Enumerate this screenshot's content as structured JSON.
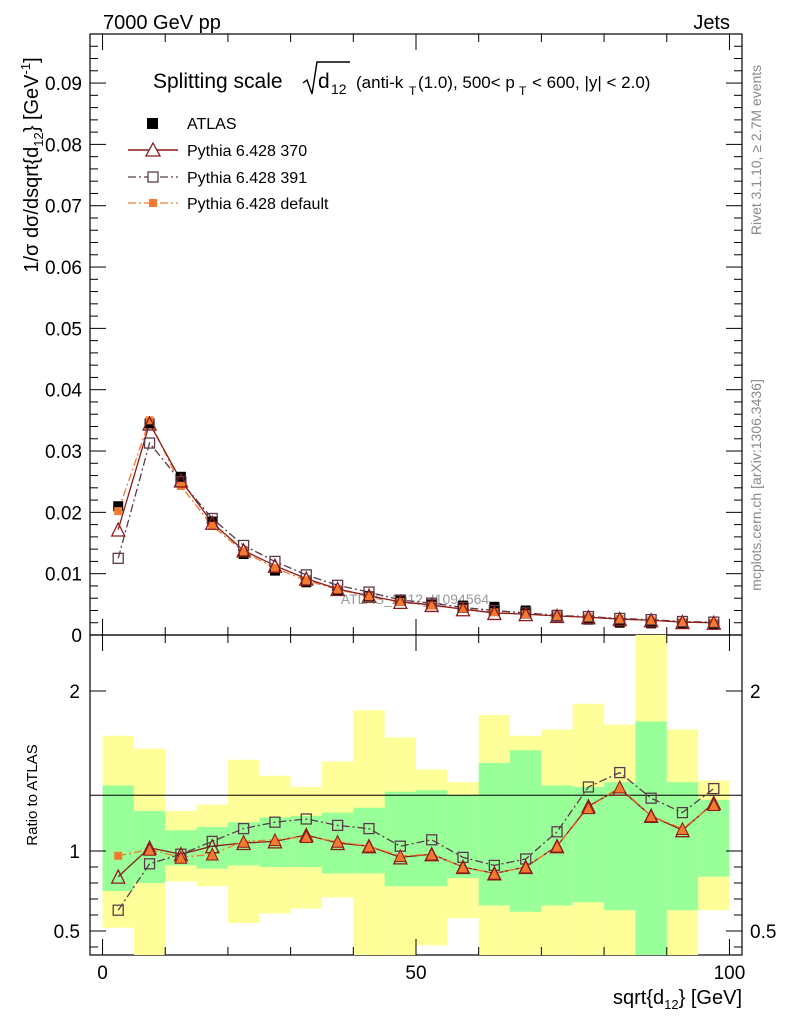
{
  "header": {
    "left": "7000 GeV pp",
    "right": "Jets"
  },
  "side_labels": {
    "rivet": "Rivet 3.1.10, ≥ 2.7M events",
    "mcplots": "mcplots.cern.ch [arXiv:1306.3436]"
  },
  "watermark": "ATLAS_2012_I1094564",
  "title": {
    "prefix": "Splitting scale",
    "sqrt_body": "d",
    "sqrt_sub": "12",
    "detail_1": "(anti-k",
    "detail_sub_1": "T",
    "detail_2": "(1.0), 500< p",
    "detail_sub_2": "T",
    "detail_3": "< 600, |y| < 2.0)"
  },
  "y_axis_main": {
    "label": "1/σ dσ/dsqrt{d",
    "label_sub": "12",
    "label_tail": "} [GeV",
    "label_sup": "-1",
    "label_end": "]"
  },
  "y_axis_ratio": {
    "label": "Ratio to ATLAS"
  },
  "x_axis": {
    "label": "sqrt{d",
    "label_sub": "12",
    "label_tail": "} [GeV]"
  },
  "chart_data": {
    "type": "line",
    "x": [
      2.5,
      7.5,
      12.5,
      17.5,
      22.5,
      27.5,
      32.5,
      37.5,
      42.5,
      47.5,
      52.5,
      57.5,
      62.5,
      67.5,
      72.5,
      77.5,
      82.5,
      87.5,
      92.5,
      97.5
    ],
    "xlim": [
      -2,
      102
    ],
    "ylim": [
      0,
      0.098
    ],
    "ratio_ylim": [
      0.35,
      2.35
    ],
    "x_ticks": [
      0,
      50,
      100
    ],
    "y_ticks": [
      0,
      0.01,
      0.02,
      0.03,
      0.04,
      0.05,
      0.06,
      0.07,
      0.08,
      0.09
    ],
    "y_tick_labels": [
      "0",
      "0.01",
      "0.02",
      "0.03",
      "0.04",
      "0.05",
      "0.06",
      "0.07",
      "0.08",
      "0.09"
    ],
    "ratio_ticks": [
      0.5,
      1,
      2
    ],
    "ratio_tick_labels": [
      "0.5",
      "1",
      "2"
    ],
    "x_tick_labels": [
      "0",
      "50",
      "100"
    ],
    "series": [
      {
        "name": "ATLAS",
        "color": "#000000",
        "marker": "square-filled",
        "values": [
          0.021,
          0.0345,
          0.0258,
          0.0185,
          0.0132,
          0.0105,
          0.0086,
          0.0072,
          0.0063,
          0.0056,
          0.005,
          0.0048,
          0.0046,
          0.004,
          0.003,
          0.0025,
          0.002,
          0.0019,
          0.0018,
          0.0017
        ]
      },
      {
        "name": "Pythia 6.428 370",
        "color": "#8b1a1a",
        "marker": "triangle-open",
        "line": "solid",
        "values": [
          0.0172,
          0.0345,
          0.0252,
          0.0183,
          0.0138,
          0.0113,
          0.0092,
          0.0075,
          0.0064,
          0.0054,
          0.0049,
          0.0042,
          0.0036,
          0.0034,
          0.0031,
          0.0029,
          0.0026,
          0.0024,
          0.0021,
          0.002
        ],
        "ratio": [
          0.84,
          1.02,
          0.98,
          1.03,
          1.05,
          1.06,
          1.1,
          1.05,
          1.03,
          0.96,
          0.98,
          0.9,
          0.86,
          0.9,
          1.03,
          1.28,
          1.39,
          1.22,
          1.13,
          1.3
        ]
      },
      {
        "name": "Pythia 6.428 391",
        "color": "#5a3a4a",
        "marker": "square-open",
        "line": "dash-dot",
        "values": [
          0.0125,
          0.0313,
          0.025,
          0.019,
          0.0146,
          0.012,
          0.0098,
          0.0081,
          0.007,
          0.0057,
          0.0052,
          0.0045,
          0.004,
          0.0036,
          0.0032,
          0.003,
          0.0027,
          0.0025,
          0.0022,
          0.0021
        ],
        "ratio": [
          0.63,
          0.92,
          0.98,
          1.06,
          1.14,
          1.18,
          1.2,
          1.16,
          1.14,
          1.03,
          1.07,
          0.96,
          0.91,
          0.95,
          1.12,
          1.4,
          1.49,
          1.33,
          1.24,
          1.39
        ]
      },
      {
        "name": "Pythia 6.428 default",
        "color": "#f47a30",
        "marker": "square-filled",
        "line": "dash-dot",
        "values": [
          0.0202,
          0.035,
          0.0243,
          0.0178,
          0.0136,
          0.0109,
          0.0089,
          0.0074,
          0.0063,
          0.0054,
          0.0048,
          0.0043,
          0.0037,
          0.0034,
          0.0031,
          0.0029,
          0.0026,
          0.0024,
          0.0021,
          0.002
        ],
        "ratio": [
          0.97,
          1.01,
          0.96,
          0.98,
          1.06,
          1.07,
          1.09,
          1.06,
          1.03,
          0.97,
          0.98,
          0.9,
          0.86,
          0.9,
          1.03,
          1.27,
          1.4,
          1.22,
          1.14,
          1.29
        ]
      }
    ],
    "bands": {
      "green_lo": [
        0.75,
        0.8,
        0.91,
        0.89,
        0.91,
        0.9,
        0.9,
        0.86,
        0.86,
        0.78,
        0.78,
        0.83,
        0.66,
        0.62,
        0.66,
        0.68,
        0.63,
        0.35,
        0.63,
        0.84
      ],
      "green_hi": [
        1.41,
        1.25,
        1.13,
        1.15,
        1.18,
        1.21,
        1.22,
        1.24,
        1.27,
        1.37,
        1.38,
        1.35,
        1.55,
        1.63,
        1.41,
        1.4,
        1.43,
        1.81,
        1.43,
        1.32
      ],
      "yellow_lo": [
        0.52,
        0.35,
        0.81,
        0.78,
        0.55,
        0.61,
        0.64,
        0.71,
        0.35,
        0.35,
        0.41,
        0.58,
        0.35,
        0.35,
        0.35,
        0.35,
        0.35,
        0.35,
        0.35,
        0.63
      ],
      "yellow_hi": [
        1.72,
        1.64,
        1.25,
        1.29,
        1.57,
        1.47,
        1.4,
        1.56,
        1.88,
        1.71,
        1.51,
        1.43,
        1.85,
        1.72,
        1.76,
        1.92,
        1.79,
        2.35,
        1.76,
        1.44
      ]
    }
  }
}
